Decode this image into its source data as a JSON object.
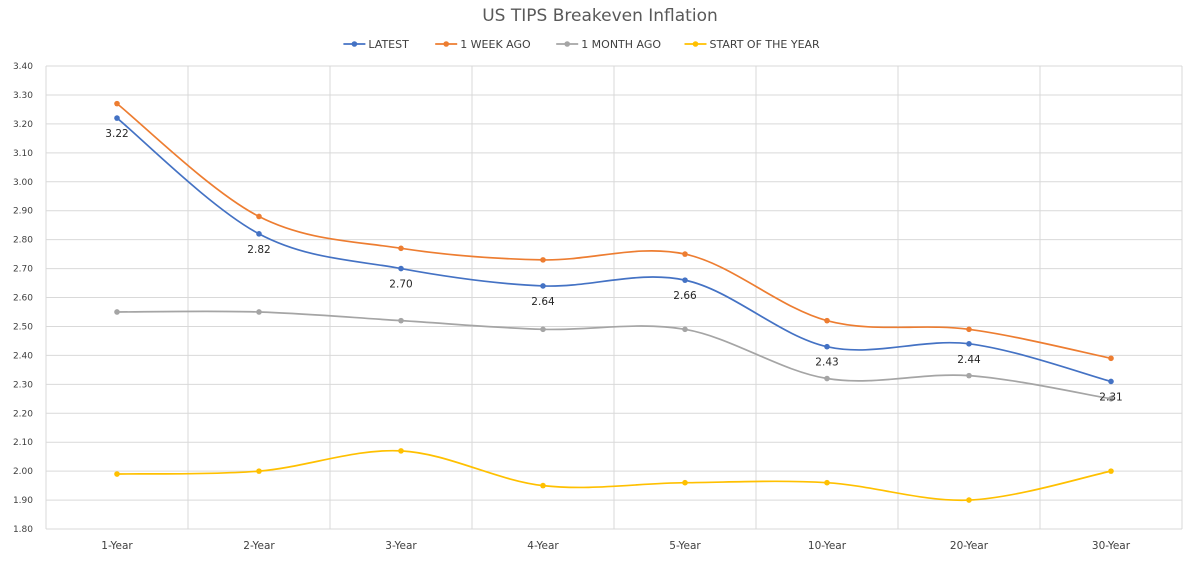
{
  "chart_data": {
    "type": "line",
    "title": "US TIPS Breakeven Inflation",
    "xlabel": "",
    "ylabel": "",
    "categories": [
      "1-Year",
      "2-Year",
      "3-Year",
      "4-Year",
      "5-Year",
      "10-Year",
      "20-Year",
      "30-Year"
    ],
    "ylim": [
      1.8,
      3.4
    ],
    "yticks": [
      "1.80",
      "1.90",
      "2.00",
      "2.10",
      "2.20",
      "2.30",
      "2.40",
      "2.50",
      "2.60",
      "2.70",
      "2.80",
      "2.90",
      "3.00",
      "3.10",
      "3.20",
      "3.30",
      "3.40"
    ],
    "grid": true,
    "legend_position": "top",
    "series": [
      {
        "name": "LATEST",
        "color": "#4472C4",
        "values": [
          3.22,
          2.82,
          2.7,
          2.64,
          2.66,
          2.43,
          2.44,
          2.31
        ],
        "labels": [
          "3.22",
          "2.82",
          "2.70",
          "2.64",
          "2.66",
          "2.43",
          "2.44",
          "2.31"
        ]
      },
      {
        "name": "1 WEEK AGO",
        "color": "#ED7D31",
        "values": [
          3.27,
          2.88,
          2.77,
          2.73,
          2.75,
          2.52,
          2.49,
          2.39
        ]
      },
      {
        "name": "1 MONTH AGO",
        "color": "#A5A5A5",
        "values": [
          2.55,
          2.55,
          2.52,
          2.49,
          2.49,
          2.32,
          2.33,
          2.25
        ]
      },
      {
        "name": "START OF THE YEAR",
        "color": "#FFC000",
        "values": [
          1.99,
          2.0,
          2.07,
          1.95,
          1.96,
          1.96,
          1.9,
          2.0
        ]
      }
    ]
  }
}
